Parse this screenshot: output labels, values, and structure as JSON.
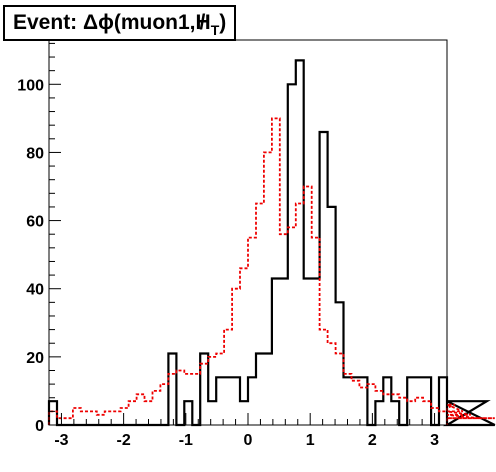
{
  "chart_data": {
    "type": "histogram",
    "title": "Event: Δϕ(muon1,H̸T)",
    "title_parts": {
      "prefix": "Event: ",
      "delta": "Δ",
      "phi": "ϕ",
      "body": "(muon1,",
      "h": "H",
      "sub": "T",
      "close": ")"
    },
    "xlabel": "",
    "ylabel": "",
    "xlim": [
      -3.2,
      3.2
    ],
    "ylim": [
      0,
      113
    ],
    "x_ticks": [
      -3,
      -2,
      -1,
      0,
      1,
      2,
      3
    ],
    "x_tick_labels": [
      "-3",
      "-2",
      "-1",
      "0",
      "1",
      "2",
      "3"
    ],
    "y_ticks": [
      0,
      20,
      40,
      60,
      80,
      100
    ],
    "y_tick_labels": [
      "0",
      "20",
      "40",
      "60",
      "80",
      "100"
    ],
    "bin_width": 0.128,
    "grid": false,
    "series": [
      {
        "style": "solid",
        "color": "#000000",
        "values": [
          7,
          0,
          0,
          0,
          0,
          0,
          0,
          0,
          0,
          0,
          0,
          0,
          0,
          0,
          0,
          21,
          0,
          7,
          0,
          21,
          7,
          14,
          14,
          14,
          7,
          14,
          21,
          21,
          43,
          43,
          100,
          107,
          43,
          43,
          86,
          64,
          36,
          14,
          14,
          14,
          0,
          7,
          14,
          7,
          0,
          14,
          14,
          14,
          0,
          14,
          0,
          0,
          0,
          0,
          0,
          7,
          0
        ]
      },
      {
        "style": "dashed",
        "color": "#ee0000",
        "values": [
          4,
          2,
          2,
          5,
          4,
          4,
          3,
          4,
          4,
          5,
          7,
          9,
          7,
          10,
          12,
          15,
          16,
          15,
          15,
          18,
          20,
          21,
          28,
          40,
          46,
          55,
          65,
          80,
          90,
          56,
          58,
          65,
          70,
          55,
          28,
          24,
          21,
          15,
          13,
          11,
          12,
          10,
          9,
          9,
          8,
          7,
          8,
          7,
          5,
          4,
          5,
          6,
          4,
          3,
          2,
          2,
          2
        ]
      }
    ]
  }
}
